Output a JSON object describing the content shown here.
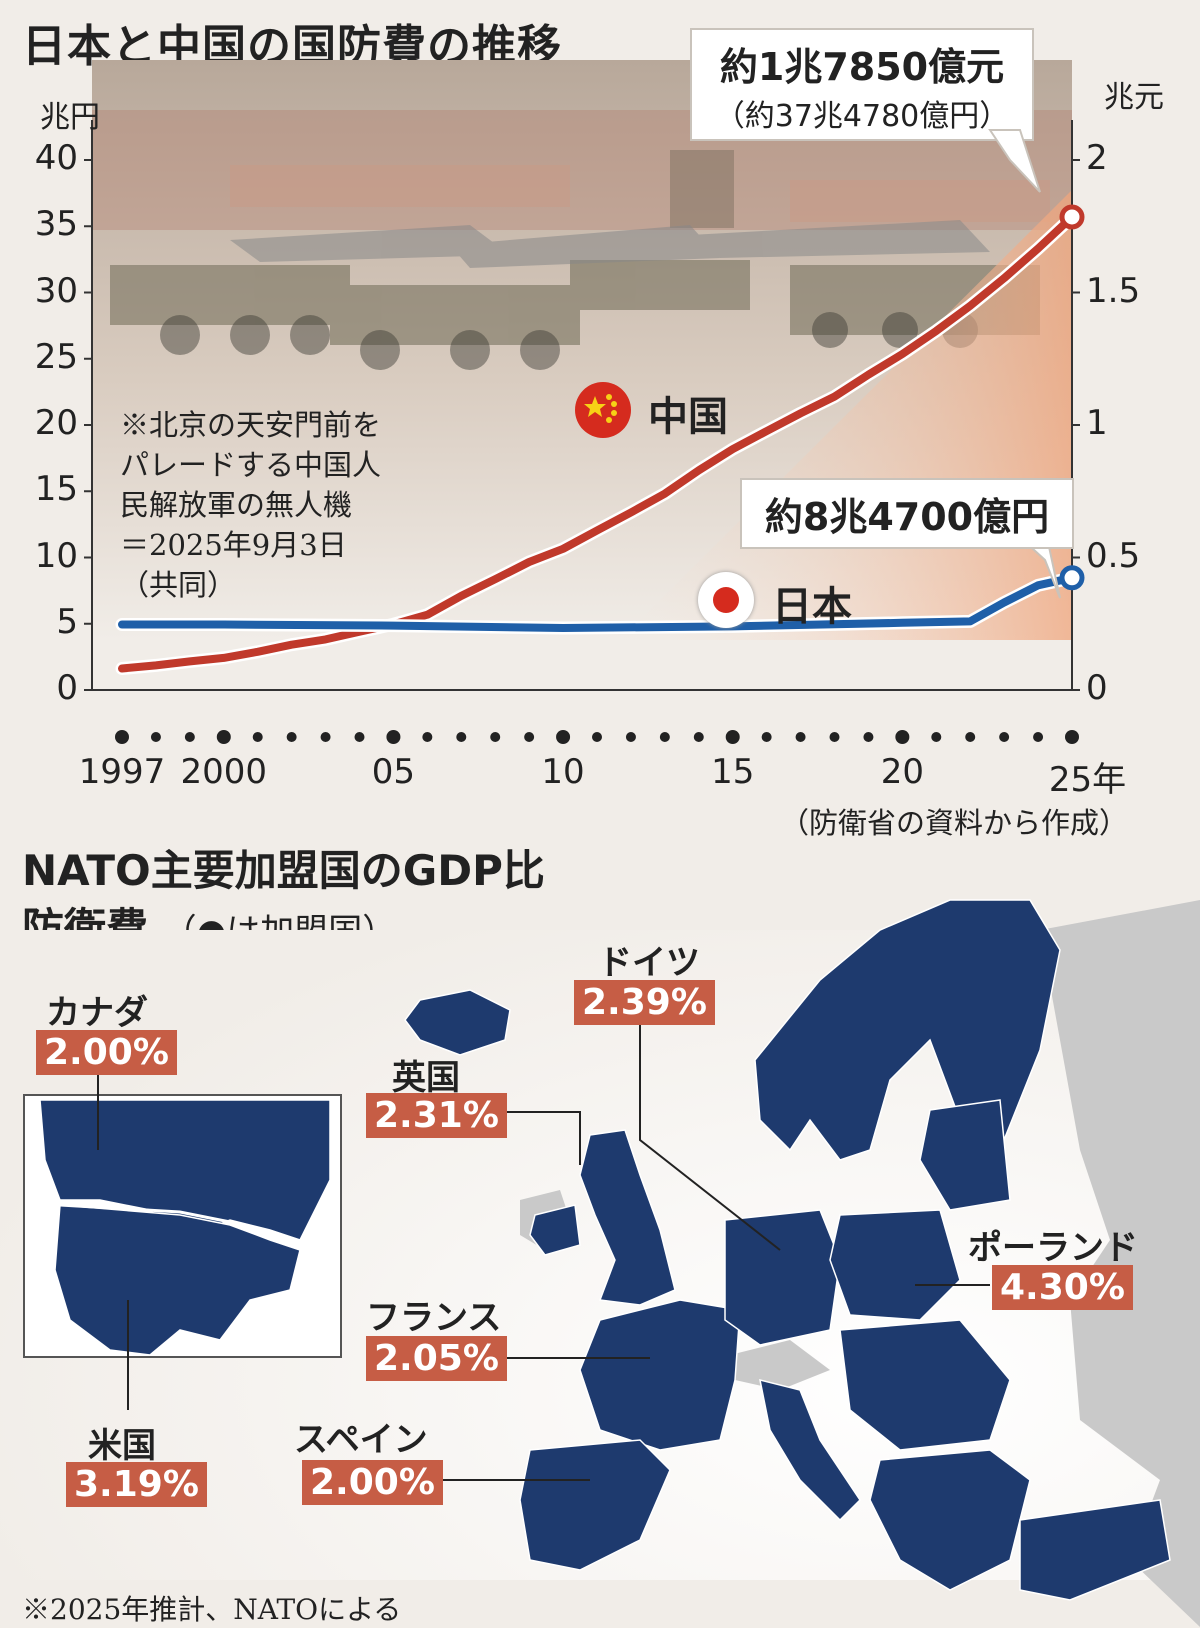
{
  "title": "日本と中国の国防費の推移",
  "chart_data": {
    "type": "line",
    "x_axis": {
      "ticks": [
        "1997",
        "2000",
        "05",
        "10",
        "15",
        "20",
        "25年"
      ],
      "tick_years": [
        1997,
        2000,
        2005,
        2010,
        2015,
        2020,
        2025
      ],
      "range": [
        1997,
        2025
      ]
    },
    "y_left": {
      "unit": "兆円",
      "range": [
        0,
        40
      ],
      "ticks": [
        "40",
        "35",
        "30",
        "25",
        "20",
        "15",
        "10",
        "5",
        "0"
      ]
    },
    "y_right": {
      "unit": "兆元",
      "range": [
        0,
        2
      ],
      "ticks": [
        "2",
        "1.5",
        "1",
        "0.5",
        "0"
      ]
    },
    "series": [
      {
        "name": "中国",
        "axis": "right",
        "color": "#c0392b",
        "x": [
          1997,
          1998,
          1999,
          2000,
          2001,
          2002,
          2003,
          2004,
          2005,
          2006,
          2007,
          2008,
          2009,
          2010,
          2011,
          2012,
          2013,
          2014,
          2015,
          2016,
          2017,
          2018,
          2019,
          2020,
          2021,
          2022,
          2023,
          2024,
          2025
        ],
        "values": [
          0.081,
          0.093,
          0.108,
          0.121,
          0.144,
          0.171,
          0.191,
          0.22,
          0.248,
          0.284,
          0.355,
          0.418,
          0.483,
          0.533,
          0.602,
          0.67,
          0.741,
          0.829,
          0.909,
          0.977,
          1.044,
          1.107,
          1.19,
          1.268,
          1.355,
          1.45,
          1.554,
          1.666,
          1.785
        ]
      },
      {
        "name": "日本",
        "axis": "left",
        "color": "#1f5fa8",
        "x": [
          1997,
          2000,
          2005,
          2010,
          2015,
          2020,
          2022,
          2023,
          2024,
          2025
        ],
        "values": [
          4.94,
          4.94,
          4.86,
          4.68,
          4.8,
          5.07,
          5.18,
          6.6,
          7.9,
          8.47
        ]
      }
    ],
    "annotations": [
      {
        "series": "中国",
        "text": "約1兆7850億元",
        "subtext": "（約37兆4780億円）"
      },
      {
        "series": "日本",
        "text": "約8兆4700億円"
      }
    ],
    "photo_caption": [
      "※北京の天安門前を",
      "パレードする中国人",
      "民解放軍の無人機",
      "＝2025年9月3日",
      "（共同）"
    ],
    "source": "（防衛省の資料から作成）"
  },
  "nato": {
    "title_line1": "NATO主要加盟国のGDP比",
    "title_line2": "防衛費",
    "legend": "（●は加盟国）",
    "legend_color": "#1e3a6e",
    "countries": [
      {
        "name": "カナダ",
        "pct": "2.00%"
      },
      {
        "name": "米国",
        "pct": "3.19%"
      },
      {
        "name": "英国",
        "pct": "2.31%"
      },
      {
        "name": "ドイツ",
        "pct": "2.39%"
      },
      {
        "name": "フランス",
        "pct": "2.05%"
      },
      {
        "name": "スペイン",
        "pct": "2.00%"
      },
      {
        "name": "ポーランド",
        "pct": "4.30%"
      }
    ],
    "footnote": "※2025年推計、NATOによる"
  }
}
